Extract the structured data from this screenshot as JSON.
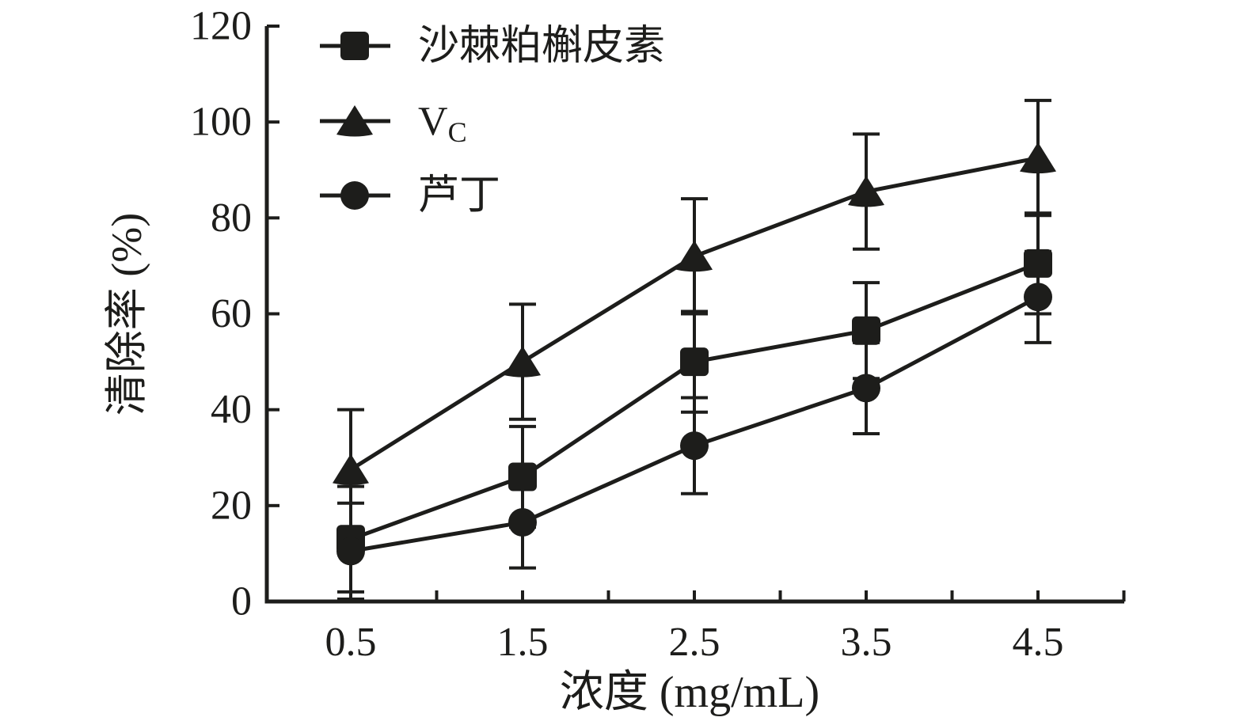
{
  "figure": {
    "background": "#ffffff",
    "ink_color": "#1d1d1b"
  },
  "chart_data": {
    "type": "line",
    "title": "",
    "x": [
      0.5,
      1.5,
      2.5,
      3.5,
      4.5
    ],
    "xlabel": "浓度 (mg/mL)",
    "ylabel": "清除率 (%)",
    "xlim": [
      0,
      5
    ],
    "ylim": [
      0,
      120
    ],
    "y_ticks": [
      0,
      20,
      40,
      60,
      80,
      100,
      120
    ],
    "x_tick_labels": [
      "0.5",
      "1.5",
      "2.5",
      "3.5",
      "4.5"
    ],
    "x_minor_ticks": [
      1,
      2,
      3,
      4,
      5
    ],
    "grid": false,
    "legend_position": "top-left-inside",
    "line_color": "#1d1d1b",
    "error_bars": true,
    "series": [
      {
        "name": "沙棘粕槲皮素",
        "legend_main": "沙棘粕槲皮素",
        "legend_sub": "",
        "marker": "square",
        "values": [
          13,
          26,
          50,
          56.5,
          70.5
        ],
        "errors": [
          11,
          10.5,
          10.5,
          10,
          10.5
        ]
      },
      {
        "name": "Vc",
        "legend_main": "V",
        "legend_sub": "C",
        "marker": "triangle",
        "values": [
          27.5,
          50,
          72,
          85.5,
          92.5
        ],
        "errors": [
          12.5,
          12,
          12,
          12,
          12
        ]
      },
      {
        "name": "芦丁",
        "legend_main": "芦丁",
        "legend_sub": "",
        "marker": "circle",
        "values": [
          10.5,
          16.5,
          32.5,
          44.5,
          63.5
        ],
        "errors": [
          10,
          9.5,
          10,
          9.5,
          9.5
        ]
      }
    ]
  }
}
